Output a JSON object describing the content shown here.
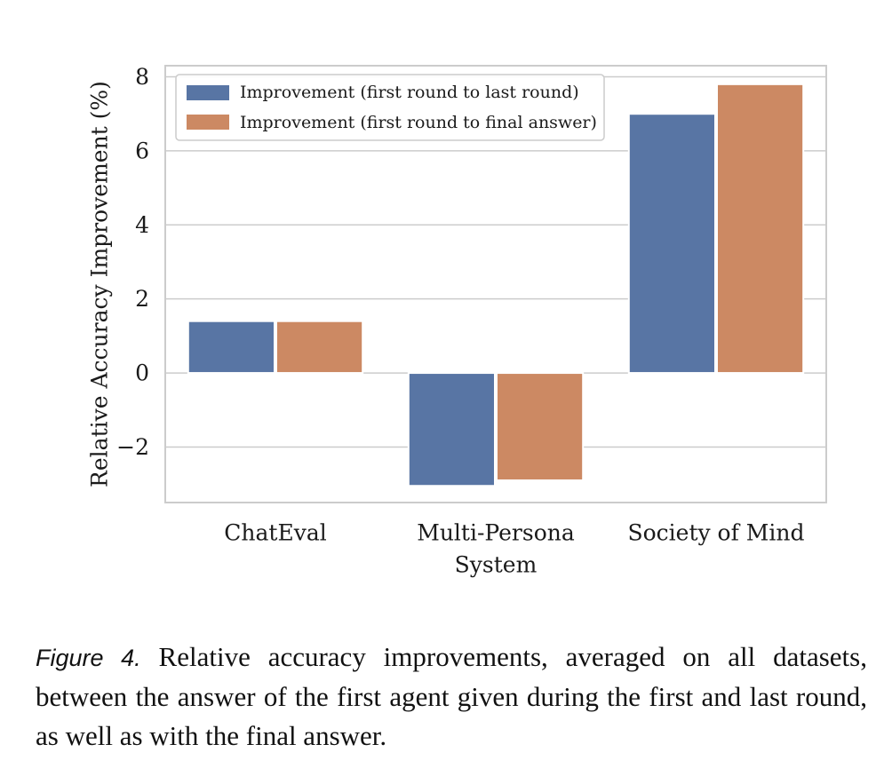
{
  "chart_data": {
    "type": "bar",
    "categories": [
      [
        "ChatEval"
      ],
      [
        "Multi-Persona",
        "System"
      ],
      [
        "Society of Mind"
      ]
    ],
    "series": [
      {
        "name": "Improvement (first round to last round)",
        "color": "#5875a4",
        "values": [
          1.4,
          -3.05,
          7.0
        ]
      },
      {
        "name": "Improvement (first round to final answer)",
        "color": "#cc8963",
        "values": [
          1.4,
          -2.9,
          7.8
        ]
      }
    ],
    "ylabel": "Relative Accuracy Improvement (%)",
    "xlabel": "",
    "ylim": [
      -3.5,
      8.3
    ],
    "yticks": [
      {
        "value": -2,
        "label": "−2"
      },
      {
        "value": 0,
        "label": "0"
      },
      {
        "value": 2,
        "label": "2"
      },
      {
        "value": 4,
        "label": "4"
      },
      {
        "value": 6,
        "label": "6"
      },
      {
        "value": 8,
        "label": "8"
      }
    ],
    "grid": true,
    "legend_position": "top-left"
  },
  "caption": {
    "lead": "Figure 4.",
    "text": " Relative accuracy improvements, averaged on all datasets, between the answer of the first agent given during the first and last round, as well as with the final answer."
  }
}
